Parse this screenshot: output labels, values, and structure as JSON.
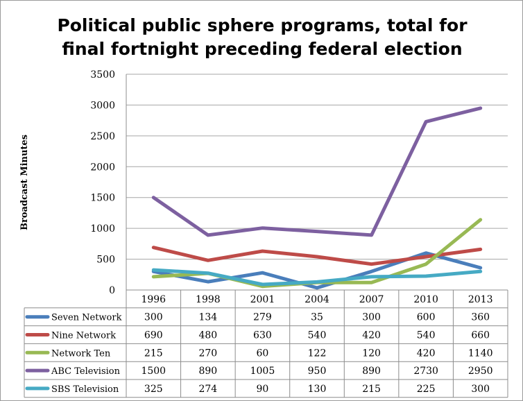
{
  "chart_data": {
    "type": "line",
    "title_lines": [
      "Political public sphere programs, total for",
      "final fortnight preceding federal election"
    ],
    "ylabel": "Broadcast Minutes",
    "xlabel": "",
    "ylim": [
      0,
      3500
    ],
    "y_ticks": [
      0,
      500,
      1000,
      1500,
      2000,
      2500,
      3000,
      3500
    ],
    "categories": [
      "1996",
      "1998",
      "2001",
      "2004",
      "2007",
      "2010",
      "2013"
    ],
    "grid": true,
    "legend_placement": "data-table-below",
    "series": [
      {
        "name": "Seven Network",
        "color": "#4a7ebb",
        "values": [
          300,
          134,
          279,
          35,
          300,
          600,
          360
        ]
      },
      {
        "name": "Nine Network",
        "color": "#be4b48",
        "values": [
          690,
          480,
          630,
          540,
          420,
          540,
          660
        ]
      },
      {
        "name": "Network Ten",
        "color": "#98b954",
        "values": [
          215,
          270,
          60,
          122,
          120,
          420,
          1140
        ]
      },
      {
        "name": "ABC Television",
        "color": "#7d60a0",
        "values": [
          1500,
          890,
          1005,
          950,
          890,
          2730,
          2950
        ]
      },
      {
        "name": "SBS Television",
        "color": "#46aac4",
        "values": [
          325,
          274,
          90,
          130,
          215,
          225,
          300
        ]
      }
    ]
  }
}
